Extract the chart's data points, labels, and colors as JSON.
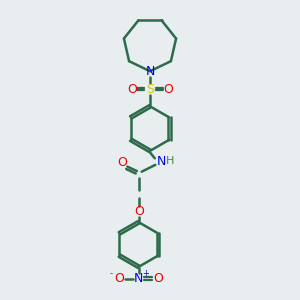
{
  "bg_color": "#e8eef0",
  "bond_color": "#2d6b4a",
  "bond_width": 1.8,
  "N_color": "#0000ee",
  "O_color": "#ee0000",
  "S_color": "#cccc00",
  "H_color": "#448844",
  "fig_size": [
    3.0,
    3.0
  ],
  "dpi": 100,
  "xlim": [
    0,
    10
  ],
  "ylim": [
    0,
    10
  ]
}
